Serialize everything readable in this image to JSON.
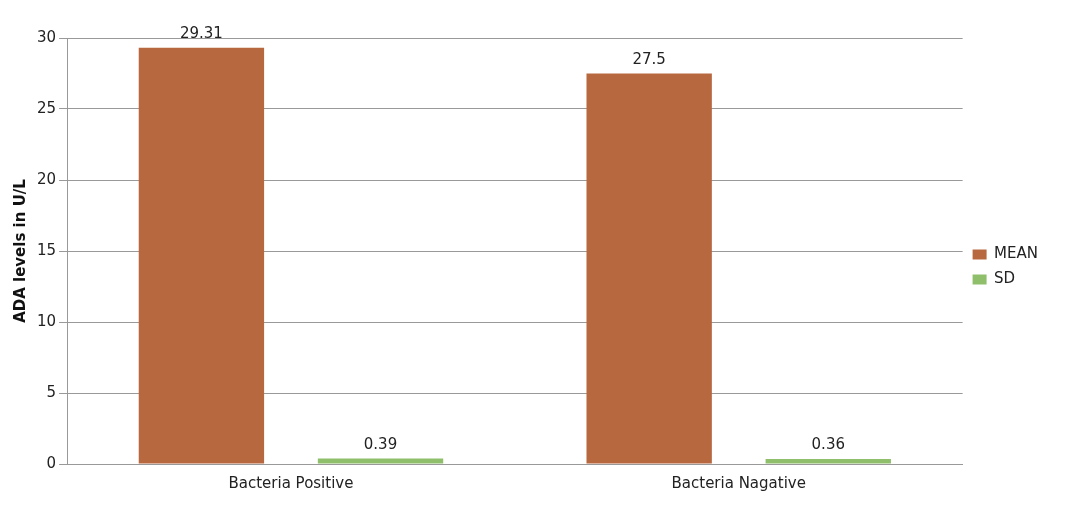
{
  "chart_data": {
    "type": "bar",
    "ylabel": "ADA levels in U/L",
    "categories": [
      "Bacteria Positive",
      "Bacteria Nagative"
    ],
    "series": [
      {
        "name": "MEAN",
        "color": "#b8683e",
        "values": [
          29.31,
          27.5
        ]
      },
      {
        "name": "SD",
        "color": "#8fbf6a",
        "values": [
          0.39,
          0.36
        ]
      }
    ],
    "ylim": [
      0,
      30
    ],
    "yticks": [
      0,
      5,
      10,
      15,
      20,
      25,
      30
    ],
    "grid": "y",
    "legend": "right",
    "data_labels": true
  }
}
